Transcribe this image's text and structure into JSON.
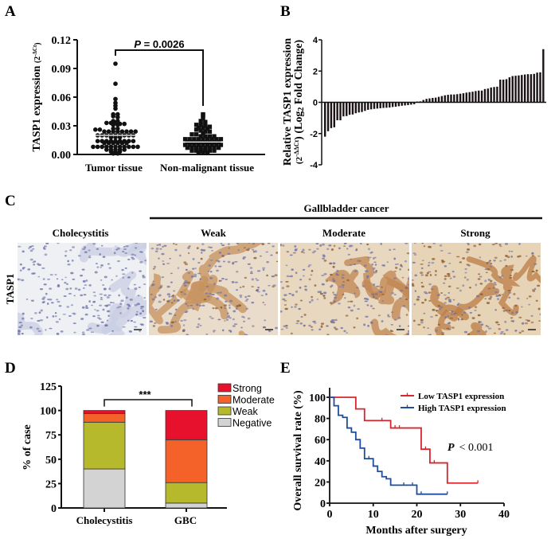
{
  "panel_labels": {
    "a": "A",
    "b": "B",
    "c": "C",
    "d": "D",
    "e": "E"
  },
  "colors": {
    "black": "#111111",
    "strong": "#e8112d",
    "moderate": "#f4622a",
    "weak": "#b7b92c",
    "negative": "#d3d3d3",
    "low": "#d7262e",
    "high": "#1f4e9c"
  },
  "chart_data": [
    {
      "id": "A",
      "type": "scatter",
      "ylabel": "TASP1 expression (2^-ΔCt)",
      "ylabel_main": "TASP1 expression ",
      "ylabel_unit": "(2",
      "ylabel_sup": "-ΔCt",
      "ylim": [
        0,
        0.12
      ],
      "yticks": [
        "0.00",
        "0.03",
        "0.06",
        "0.09",
        "0.12"
      ],
      "categories": [
        "Tumor tissue",
        "Non-malignant tissue"
      ],
      "annotation": {
        "p_italic": "P",
        "p_text": " = 0.0026"
      },
      "medians": [
        0.02,
        0.013
      ],
      "series": [
        {
          "name": "Tumor tissue",
          "marker": "circle",
          "values": [
            0.095,
            0.074,
            0.058,
            0.054,
            0.051,
            0.048,
            0.042,
            0.042,
            0.04,
            0.039,
            0.035,
            0.035,
            0.033,
            0.033,
            0.033,
            0.032,
            0.032,
            0.031,
            0.031,
            0.027,
            0.027,
            0.026,
            0.026,
            0.024,
            0.024,
            0.024,
            0.024,
            0.024,
            0.024,
            0.024,
            0.024,
            0.02,
            0.02,
            0.02,
            0.02,
            0.02,
            0.02,
            0.02,
            0.02,
            0.02,
            0.018,
            0.018,
            0.018,
            0.014,
            0.014,
            0.014,
            0.014,
            0.014,
            0.014,
            0.014,
            0.014,
            0.014,
            0.012,
            0.012,
            0.012,
            0.012,
            0.012,
            0.012,
            0.008,
            0.008,
            0.008,
            0.008,
            0.008,
            0.008,
            0.008,
            0.008,
            0.008,
            0.008,
            0.008,
            0.005,
            0.005,
            0.005,
            0.005,
            0.005,
            0.003,
            0.003,
            0.003,
            0.001,
            0.001
          ]
        },
        {
          "name": "Non-malignant tissue",
          "marker": "square",
          "values": [
            0.042,
            0.041,
            0.038,
            0.035,
            0.034,
            0.031,
            0.031,
            0.03,
            0.029,
            0.028,
            0.028,
            0.027,
            0.026,
            0.025,
            0.024,
            0.024,
            0.022,
            0.021,
            0.021,
            0.019,
            0.019,
            0.019,
            0.019,
            0.016,
            0.016,
            0.016,
            0.016,
            0.016,
            0.016,
            0.016,
            0.016,
            0.016,
            0.013,
            0.013,
            0.013,
            0.013,
            0.013,
            0.013,
            0.013,
            0.013,
            0.01,
            0.01,
            0.01,
            0.01,
            0.01,
            0.01,
            0.01,
            0.01,
            0.01,
            0.007,
            0.007,
            0.007,
            0.007,
            0.007,
            0.007,
            0.007,
            0.007,
            0.004,
            0.004,
            0.004,
            0.004,
            0.004,
            0.004,
            0.002,
            0.002,
            0.002
          ]
        }
      ]
    },
    {
      "id": "B",
      "type": "bar",
      "ylabel_line1": "Relative TASP1 expression",
      "ylabel_line2_a": "(2",
      "ylabel_line2_sup": "-ΔΔCt",
      "ylabel_line2_b": ") (Log",
      "ylabel_line2_sub": "2",
      "ylabel_line2_c": " Fold Change)",
      "ylim": [
        -4,
        4
      ],
      "yticks": [
        "-4",
        "-2",
        "0",
        "2",
        "4"
      ],
      "values": [
        -2.2,
        -1.85,
        -1.65,
        -1.6,
        -1.15,
        -1.15,
        -0.9,
        -0.88,
        -0.8,
        -0.78,
        -0.7,
        -0.65,
        -0.62,
        -0.55,
        -0.48,
        -0.45,
        -0.42,
        -0.4,
        -0.38,
        -0.36,
        -0.35,
        -0.33,
        -0.3,
        -0.28,
        -0.25,
        -0.22,
        -0.2,
        -0.18,
        -0.15,
        -0.12,
        0.05,
        0.06,
        0.15,
        0.22,
        0.25,
        0.28,
        0.3,
        0.35,
        0.4,
        0.45,
        0.48,
        0.5,
        0.5,
        0.52,
        0.55,
        0.58,
        0.62,
        0.65,
        0.68,
        0.72,
        0.75,
        0.75,
        0.85,
        0.88,
        0.95,
        0.98,
        1.0,
        1.45,
        1.45,
        1.48,
        1.6,
        1.68,
        1.7,
        1.72,
        1.75,
        1.78,
        1.8,
        1.8,
        1.82,
        1.9,
        1.92,
        3.4
      ]
    },
    {
      "id": "D",
      "type": "bar",
      "stacked": true,
      "ylabel": "% of case",
      "ylim": [
        0,
        125
      ],
      "yticks": [
        "0",
        "25",
        "50",
        "75",
        "100",
        "125"
      ],
      "categories": [
        "Cholecystitis",
        "GBC"
      ],
      "annotation": "***",
      "legend_position": "top-right",
      "series": [
        {
          "name": "Negative",
          "color_key": "negative",
          "values": [
            40,
            5
          ]
        },
        {
          "name": "Weak",
          "color_key": "weak",
          "values": [
            48,
            21
          ]
        },
        {
          "name": "Moderate",
          "color_key": "moderate",
          "values": [
            9,
            44
          ]
        },
        {
          "name": "Strong",
          "color_key": "strong",
          "values": [
            3,
            30
          ]
        }
      ]
    },
    {
      "id": "E",
      "type": "line",
      "step": true,
      "xlabel": "Months after surgery",
      "ylabel": "Overall survival rate (%)",
      "xlim": [
        0,
        40
      ],
      "ylim": [
        0,
        100
      ],
      "xticks": [
        "0",
        "10",
        "20",
        "30",
        "40"
      ],
      "yticks": [
        "0",
        "20",
        "40",
        "60",
        "80",
        "100"
      ],
      "legend_position": "top-right",
      "annotation": {
        "p_italic": "P",
        "p_text": "<  0.001"
      },
      "series": [
        {
          "name": "Low TASP1 expression",
          "color_key": "low",
          "steps": [
            [
              0,
              100
            ],
            [
              6,
              89
            ],
            [
              8,
              78
            ],
            [
              14,
              71
            ],
            [
              21,
              51
            ],
            [
              23,
              38
            ],
            [
              27,
              19
            ],
            [
              34,
              19
            ]
          ],
          "censored": [
            [
              12,
              78
            ],
            [
              15,
              71
            ],
            [
              16,
              71
            ],
            [
              22,
              51
            ],
            [
              24,
              38
            ],
            [
              34,
              19
            ]
          ]
        },
        {
          "name": "High TASP1 expression",
          "color_key": "high",
          "steps": [
            [
              0,
              100
            ],
            [
              1,
              92
            ],
            [
              2,
              83
            ],
            [
              3,
              81
            ],
            [
              4,
              71
            ],
            [
              5,
              67
            ],
            [
              6,
              60
            ],
            [
              7,
              52
            ],
            [
              8,
              42
            ],
            [
              10,
              35
            ],
            [
              11,
              30
            ],
            [
              12,
              25
            ],
            [
              13,
              23
            ],
            [
              14,
              17
            ],
            [
              20,
              8.5
            ],
            [
              27,
              8.5
            ]
          ],
          "censored": [
            [
              9,
              42
            ],
            [
              17,
              17
            ],
            [
              19,
              17
            ],
            [
              21,
              8.5
            ],
            [
              27,
              8.5
            ]
          ]
        }
      ]
    }
  ],
  "panel_c": {
    "group_title": "Gallbladder cancer",
    "row_label": "TASP1",
    "columns": [
      {
        "label": "Cholecystitis",
        "stain": 0
      },
      {
        "label": "Weak",
        "stain": 0.35
      },
      {
        "label": "Moderate",
        "stain": 0.65
      },
      {
        "label": "Strong",
        "stain": 0.9
      }
    ]
  }
}
